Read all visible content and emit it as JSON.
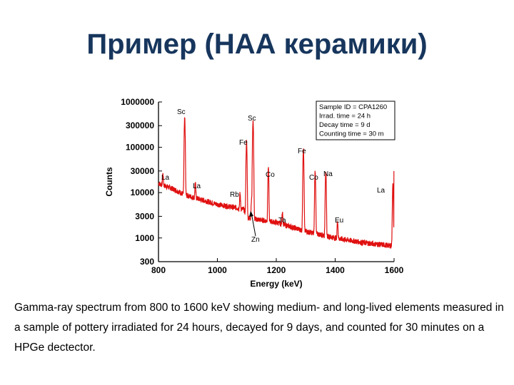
{
  "slide": {
    "title": "Пример (НАА керамики)",
    "caption": "Gamma-ray spectrum from 800 to 1600 keV showing medium- and long-lived elements measured in a sample of pottery irradiated for 24 hours, decayed for 9 days, and counted for 30 minutes on a HPGe dectector."
  },
  "chart_data": {
    "type": "line",
    "xlabel": "Energy (keV)",
    "ylabel": "Counts",
    "xlim": [
      800,
      1600
    ],
    "ylim": [
      300,
      1000000
    ],
    "yscale": "log",
    "xticks": [
      "800",
      "1000",
      "1200",
      "1400",
      "1600"
    ],
    "yticks": [
      "1000000",
      "300000",
      "100000",
      "30000",
      "10000",
      "3000",
      "1000",
      "300"
    ],
    "line_color": "#e01010",
    "info_box": [
      "Sample ID = CPA1260",
      "Irrad. time    = 24 h",
      "Decay time    =  9 d",
      "Counting time = 30 m"
    ],
    "baseline": [
      [
        800,
        16000
      ],
      [
        850,
        12000
      ],
      [
        889,
        9000
      ],
      [
        900,
        8500
      ],
      [
        1000,
        5500
      ],
      [
        1090,
        4300
      ],
      [
        1100,
        2800
      ],
      [
        1200,
        2200
      ],
      [
        1300,
        1400
      ],
      [
        1400,
        1000
      ],
      [
        1500,
        780
      ],
      [
        1585,
        680
      ]
    ],
    "peaks": [
      {
        "energy": 815,
        "height": 11000,
        "label": "La"
      },
      {
        "energy": 889,
        "height": 420000,
        "label": "Sc"
      },
      {
        "energy": 925,
        "height": 9500,
        "label": "La"
      },
      {
        "energy": 1077,
        "height": 5000,
        "label": "Rb"
      },
      {
        "energy": 1099,
        "height": 130000,
        "label": "Fe"
      },
      {
        "energy": 1116,
        "height": 4000,
        "label": "Zn"
      },
      {
        "energy": 1121,
        "height": 380000,
        "label": "Sc"
      },
      {
        "energy": 1173,
        "height": 32000,
        "label": "Co"
      },
      {
        "energy": 1221,
        "height": 1900,
        "label": "Ta"
      },
      {
        "energy": 1292,
        "height": 90000,
        "label": "Fe"
      },
      {
        "energy": 1332,
        "height": 30000,
        "label": "Co"
      },
      {
        "energy": 1368,
        "height": 30000,
        "label": "Na"
      },
      {
        "energy": 1408,
        "height": 1500,
        "label": "Eu"
      },
      {
        "energy": 1596,
        "height": 14000,
        "label": "La"
      }
    ]
  }
}
